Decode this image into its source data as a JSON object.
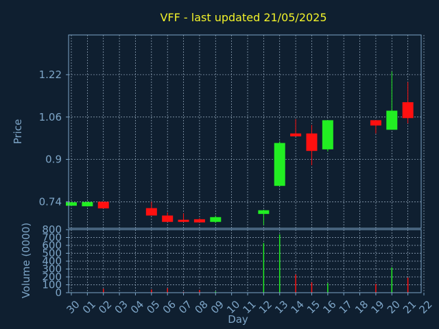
{
  "chart_data": [
    {
      "type": "candlestick",
      "title": "VFF - last updated 21/05/2025",
      "ylabel": "Price",
      "ylim": [
        0.64,
        1.37
      ],
      "yticks": [
        0.74,
        0.9,
        1.06,
        1.22
      ],
      "ytick_labels": [
        "0.74",
        "0.9",
        "1.06",
        "1.22"
      ],
      "xlim": [
        -0.5,
        22.5
      ],
      "grid": true,
      "candles": [
        {
          "x": 0,
          "open": 0.725,
          "close": 0.738,
          "high": 0.74,
          "low": 0.725
        },
        {
          "x": 1,
          "open": 0.723,
          "close": 0.739,
          "high": 0.741,
          "low": 0.722
        },
        {
          "x": 2,
          "open": 0.74,
          "close": 0.715,
          "high": 0.74,
          "low": 0.715
        },
        {
          "x": 5,
          "open": 0.716,
          "close": 0.688,
          "high": 0.74,
          "low": 0.688
        },
        {
          "x": 6,
          "open": 0.688,
          "close": 0.664,
          "high": 0.7,
          "low": 0.664
        },
        {
          "x": 7,
          "open": 0.672,
          "close": 0.664,
          "high": 0.696,
          "low": 0.664
        },
        {
          "x": 8,
          "open": 0.674,
          "close": 0.662,
          "high": 0.678,
          "low": 0.662
        },
        {
          "x": 9,
          "open": 0.664,
          "close": 0.682,
          "high": 0.688,
          "low": 0.66
        },
        {
          "x": 12,
          "open": 0.694,
          "close": 0.708,
          "high": 0.71,
          "low": 0.652
        },
        {
          "x": 13,
          "open": 0.8,
          "close": 0.962,
          "high": 0.968,
          "low": 0.8
        },
        {
          "x": 14,
          "open": 0.998,
          "close": 0.987,
          "high": 1.052,
          "low": 0.987
        },
        {
          "x": 15,
          "open": 0.998,
          "close": 0.932,
          "high": 1.03,
          "low": 0.878
        },
        {
          "x": 16,
          "open": 0.938,
          "close": 1.048,
          "high": 1.048,
          "low": 0.93
        },
        {
          "x": 19,
          "open": 1.048,
          "close": 1.028,
          "high": 1.048,
          "low": 0.998
        },
        {
          "x": 20,
          "open": 1.012,
          "close": 1.084,
          "high": 1.232,
          "low": 1.012
        },
        {
          "x": 21,
          "open": 1.116,
          "close": 1.056,
          "high": 1.192,
          "low": 1.036
        }
      ]
    },
    {
      "type": "bar",
      "ylabel": "Volume (0000)",
      "ylim": [
        0,
        800
      ],
      "yticks": [
        0,
        100,
        200,
        300,
        400,
        500,
        600,
        700,
        800
      ],
      "ytick_labels": [
        "0",
        "100",
        "200",
        "300",
        "400",
        "500",
        "600",
        "700",
        "800"
      ],
      "xlabel": "Day",
      "categories": [
        "30",
        "01",
        "02",
        "03",
        "04",
        "05",
        "06",
        "07",
        "08",
        "09",
        "10",
        "11",
        "12",
        "13",
        "14",
        "15",
        "16",
        "17",
        "18",
        "19",
        "20",
        "21",
        "22"
      ],
      "grid": true,
      "bars": [
        {
          "x": 0,
          "value": 5,
          "up": true
        },
        {
          "x": 1,
          "value": 5,
          "up": true
        },
        {
          "x": 2,
          "value": 50,
          "up": false
        },
        {
          "x": 5,
          "value": 40,
          "up": false
        },
        {
          "x": 6,
          "value": 55,
          "up": false
        },
        {
          "x": 7,
          "value": 10,
          "up": false
        },
        {
          "x": 8,
          "value": 35,
          "up": false
        },
        {
          "x": 9,
          "value": 15,
          "up": true
        },
        {
          "x": 12,
          "value": 630,
          "up": true
        },
        {
          "x": 13,
          "value": 740,
          "up": true
        },
        {
          "x": 14,
          "value": 230,
          "up": false
        },
        {
          "x": 15,
          "value": 130,
          "up": false
        },
        {
          "x": 16,
          "value": 120,
          "up": true
        },
        {
          "x": 19,
          "value": 110,
          "up": false
        },
        {
          "x": 20,
          "value": 320,
          "up": true
        },
        {
          "x": 21,
          "value": 190,
          "up": false
        }
      ]
    }
  ],
  "colors": {
    "background": "#0f1f30",
    "title": "#f2f22a",
    "axis_text": "#7ea6c8",
    "grid": "#9fb4c8",
    "axis_line": "#7ea6c8",
    "up": "#22ee22",
    "down": "#ff1010"
  }
}
